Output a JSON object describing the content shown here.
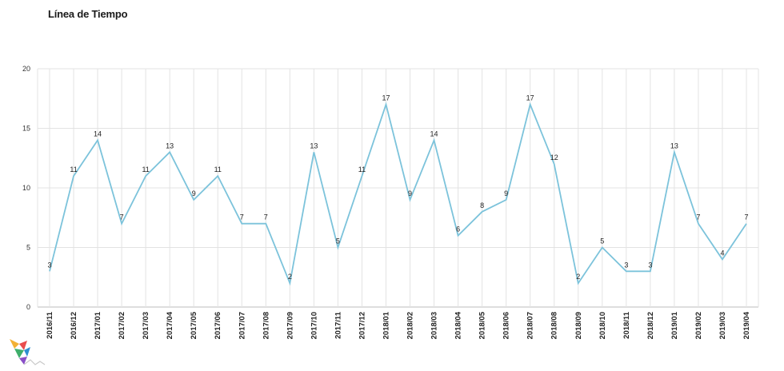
{
  "chart_data": {
    "type": "line",
    "title": "Línea de Tiempo",
    "xlabel": "",
    "ylabel": "",
    "ylim": [
      0,
      20
    ],
    "yticks": [
      0,
      5,
      10,
      15,
      20
    ],
    "grid": true,
    "line_color": "#7cc3db",
    "categories": [
      "2016/11",
      "2016/12",
      "2017/01",
      "2017/02",
      "2017/03",
      "2017/04",
      "2017/05",
      "2017/06",
      "2017/07",
      "2017/08",
      "2017/09",
      "2017/10",
      "2017/11",
      "2017/12",
      "2018/01",
      "2018/02",
      "2018/03",
      "2018/04",
      "2018/05",
      "2018/06",
      "2018/07",
      "2018/08",
      "2018/09",
      "2018/10",
      "2018/11",
      "2018/12",
      "2019/01",
      "2019/02",
      "2019/03",
      "2019/04"
    ],
    "values": [
      3,
      11,
      14,
      7,
      11,
      13,
      9,
      11,
      7,
      7,
      2,
      13,
      5,
      11,
      17,
      9,
      14,
      6,
      8,
      9,
      17,
      12,
      2,
      5,
      3,
      3,
      13,
      7,
      4,
      7
    ]
  },
  "colors": {
    "line": "#7cc3db",
    "grid": "#e3e3e3",
    "axis": "#bdbdbd"
  }
}
